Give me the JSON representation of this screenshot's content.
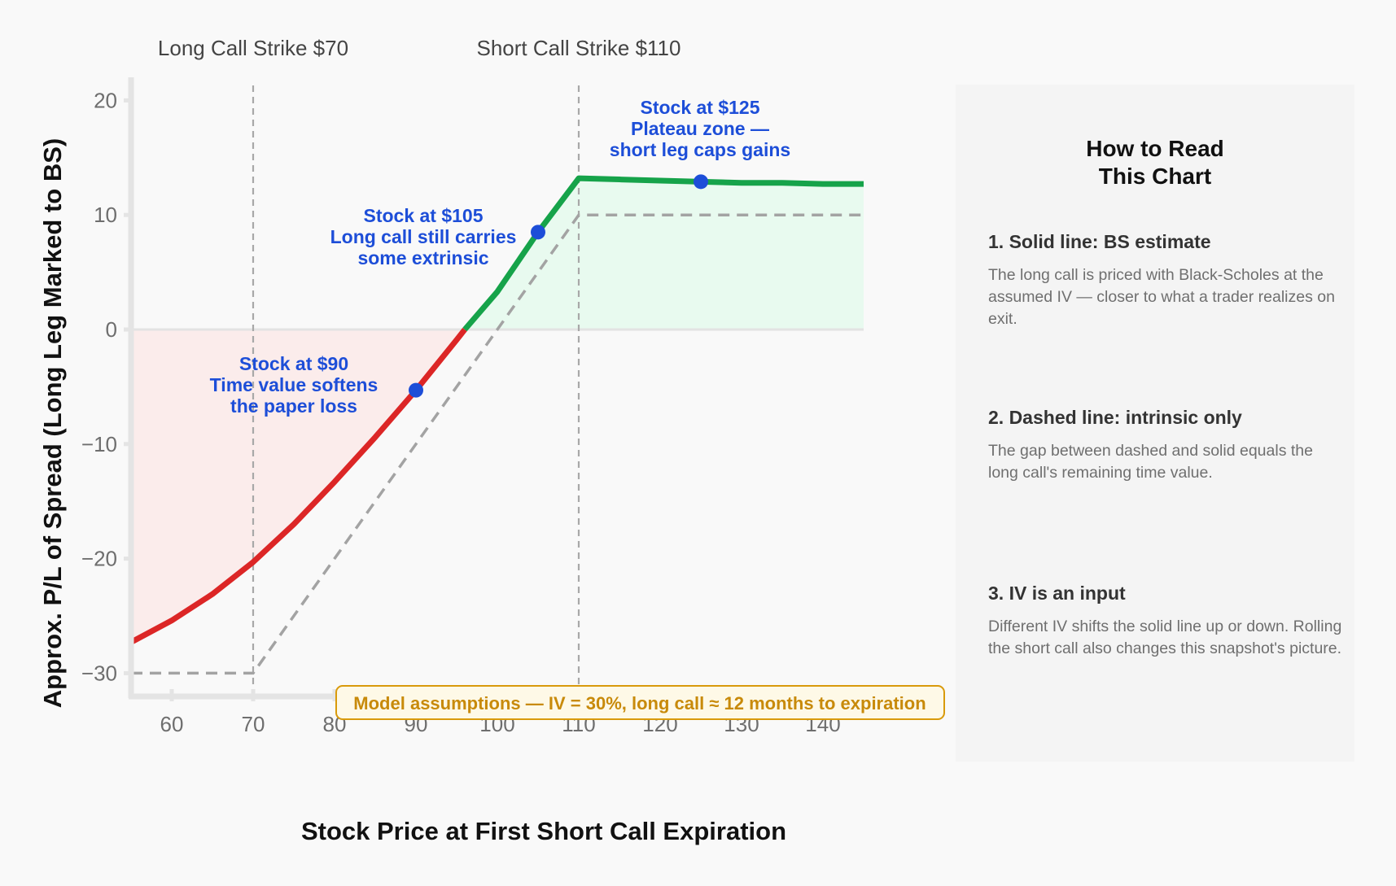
{
  "chart_data": {
    "type": "line",
    "title": "",
    "xlabel": "Stock Price at First Short Call Expiration",
    "ylabel": "Approx. P/L of Spread (Long Leg Marked to BS)",
    "xlim": [
      55,
      145
    ],
    "ylim": [
      -32,
      22
    ],
    "x_ticks": [
      60,
      70,
      80,
      90,
      100,
      110,
      120,
      130,
      140
    ],
    "y_ticks": [
      20,
      10,
      0,
      -10,
      -20,
      -30
    ],
    "y_tick_labels": [
      "20",
      "10",
      "0",
      "−10",
      "−20",
      "−30"
    ],
    "grid": false,
    "series": [
      {
        "name": "BS estimate (solid)",
        "style": "solid",
        "color_loss": "#dc2626",
        "color_gain": "#16a34a",
        "x": [
          55,
          60,
          65,
          70,
          75,
          80,
          85,
          90,
          95,
          96,
          100,
          105,
          110,
          115,
          120,
          125,
          130,
          135,
          140,
          145
        ],
        "values": [
          -27.3,
          -25.4,
          -23.1,
          -20.3,
          -17.0,
          -13.3,
          -9.4,
          -5.3,
          -0.9,
          0,
          3.3,
          8.5,
          13.2,
          13.1,
          13.0,
          12.9,
          12.8,
          12.8,
          12.7,
          12.7
        ]
      },
      {
        "name": "Intrinsic only (dashed)",
        "style": "dashed",
        "color": "#a3a3a3",
        "x": [
          55,
          70,
          110,
          145
        ],
        "values": [
          -30,
          -30,
          10,
          10
        ]
      }
    ],
    "vertical_lines": [
      {
        "x": 70,
        "label": "Long Call Strike $70"
      },
      {
        "x": 110,
        "label": "Short Call Strike $110"
      }
    ],
    "highlighted_points": [
      {
        "x": 90,
        "y": -5.3,
        "label_lines": [
          "Stock at $90",
          "Time value softens",
          "the paper loss"
        ]
      },
      {
        "x": 105,
        "y": 8.5,
        "label_lines": [
          "Stock at $105",
          "Long call still carries",
          "some extrinsic"
        ]
      },
      {
        "x": 125,
        "y": 12.9,
        "label_lines": [
          "Stock at $125",
          "Plateau zone —",
          "short leg caps gains"
        ]
      }
    ],
    "shaded_regions": [
      {
        "name": "loss-region",
        "color": "#fbeceb",
        "y_range": "below 0"
      },
      {
        "name": "gain-region",
        "color": "#e8faef",
        "y_range": "above 0"
      }
    ],
    "annotation_box": "Model assumptions — IV = 30%, long call ≈ 12 months to expiration"
  },
  "colors": {
    "loss": "#dc2626",
    "gain": "#16a34a",
    "marker": "#1d4ed8",
    "dashed": "#a3a3a3",
    "assume_text": "#c88a0a",
    "assume_border": "#d99a0b",
    "assume_bg": "#fef9e7"
  },
  "panel": {
    "title": "How to Read\nThis Chart",
    "items": [
      {
        "heading": "1. Solid line: BS estimate",
        "body": "The long call is priced with Black-Scholes at the assumed IV — closer to what a trader realizes on exit."
      },
      {
        "heading": "2. Dashed line: intrinsic only",
        "body": "The gap between dashed and solid equals the long call's remaining time value."
      },
      {
        "heading": "3. IV is an input",
        "body": "Different IV shifts the solid line up or down. Rolling the short call also changes this snapshot's picture."
      }
    ]
  }
}
